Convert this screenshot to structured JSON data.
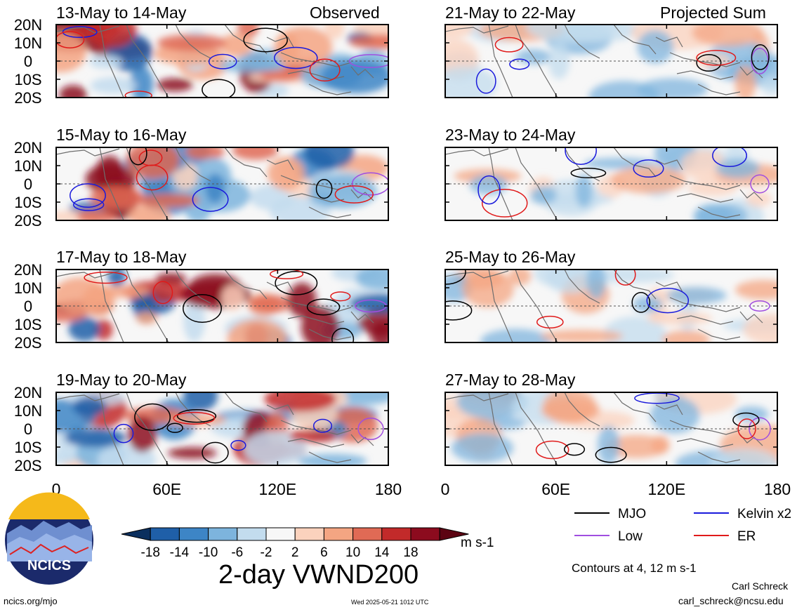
{
  "figure": {
    "title": "2-day VWND200",
    "units": "m s-1",
    "contours_note": "Contours at 4, 12 m s-1",
    "label_observed": "Observed",
    "label_projected": "Projected Sum",
    "author": "Carl Schreck",
    "email": "carl_schreck@ncsu.edu",
    "url": "ncics.org/mjo",
    "timestamp": "Wed 2025-05-21 1012 UTC",
    "logo_text": "NCICS"
  },
  "panels_left": [
    {
      "date_range": "13-May to 14-May"
    },
    {
      "date_range": "15-May to 16-May"
    },
    {
      "date_range": "17-May to 18-May"
    },
    {
      "date_range": "19-May to 20-May"
    }
  ],
  "panels_right": [
    {
      "date_range": "21-May to 22-May"
    },
    {
      "date_range": "23-May to 24-May"
    },
    {
      "date_range": "25-May to 26-May"
    },
    {
      "date_range": "27-May to 28-May"
    }
  ],
  "lat_labels": [
    "20N",
    "10N",
    "0",
    "10S",
    "20S"
  ],
  "lon_labels": [
    "0",
    "60E",
    "120E",
    "180"
  ],
  "colorbar": {
    "ticks": [
      "-18",
      "-14",
      "-10",
      "-6",
      "-2",
      "2",
      "6",
      "10",
      "14",
      "18"
    ],
    "colors": [
      "#0b2f5e",
      "#1f5fa8",
      "#3d85c6",
      "#7db4dd",
      "#c3dcee",
      "#f7f7f7",
      "#fbd2bd",
      "#f4a582",
      "#e06a55",
      "#c22a2a",
      "#8c0b1e",
      "#5c0412"
    ]
  },
  "legend": [
    {
      "label": "MJO",
      "color": "#000000"
    },
    {
      "label": "Kelvin x2",
      "color": "#1a1adc"
    },
    {
      "label": "Low",
      "color": "#a04ee0"
    },
    {
      "label": "ER",
      "color": "#e01a1a"
    }
  ]
}
